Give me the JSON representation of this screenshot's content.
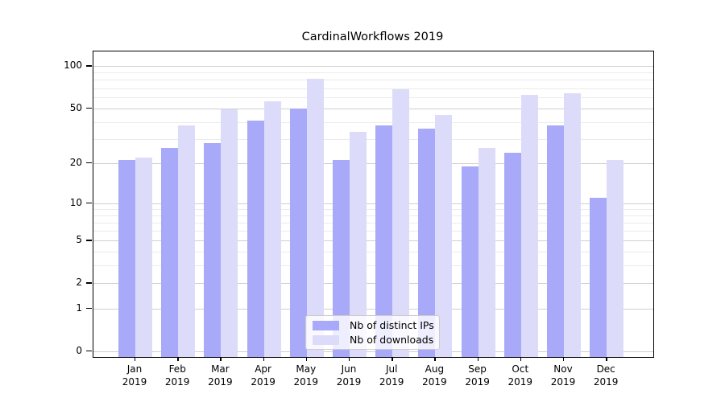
{
  "chart_data": {
    "type": "bar",
    "title": "CardinalWorkflows 2019",
    "categories": [
      "Jan",
      "Feb",
      "Mar",
      "Apr",
      "May",
      "Jun",
      "Jul",
      "Aug",
      "Sep",
      "Oct",
      "Nov",
      "Dec"
    ],
    "year": "2019",
    "series": [
      {
        "name": "Nb of distinct IPs",
        "color": "#a9a9fa",
        "values": [
          21,
          26,
          28,
          41,
          50,
          21,
          38,
          36,
          19,
          24,
          38,
          11
        ]
      },
      {
        "name": "Nb of downloads",
        "color": "#dcdcfa",
        "values": [
          22,
          38,
          49,
          56,
          81,
          34,
          69,
          45,
          26,
          63,
          64,
          21
        ]
      }
    ],
    "yscale": "log1p",
    "ylim": [
      -0.09,
      127.4
    ],
    "yticks": [
      0,
      1,
      2,
      5,
      10,
      20,
      50,
      100
    ],
    "ytick_labels": [
      "0",
      "1",
      "2",
      "5",
      "10",
      "20",
      "50",
      "100"
    ],
    "minor_gridlines": [
      3,
      4,
      6,
      7,
      8,
      9,
      30,
      40,
      60,
      70,
      80,
      90
    ],
    "grid": true,
    "legend_position": "lower center inside",
    "colors": {
      "distinct_ips_bar": "#a9a9fa",
      "downloads_bar": "#dcdcfa",
      "major_grid": "#cfcfcf",
      "minor_grid": "#ebebeb",
      "axis": "#000000",
      "legend_border": "#cccccc"
    }
  }
}
